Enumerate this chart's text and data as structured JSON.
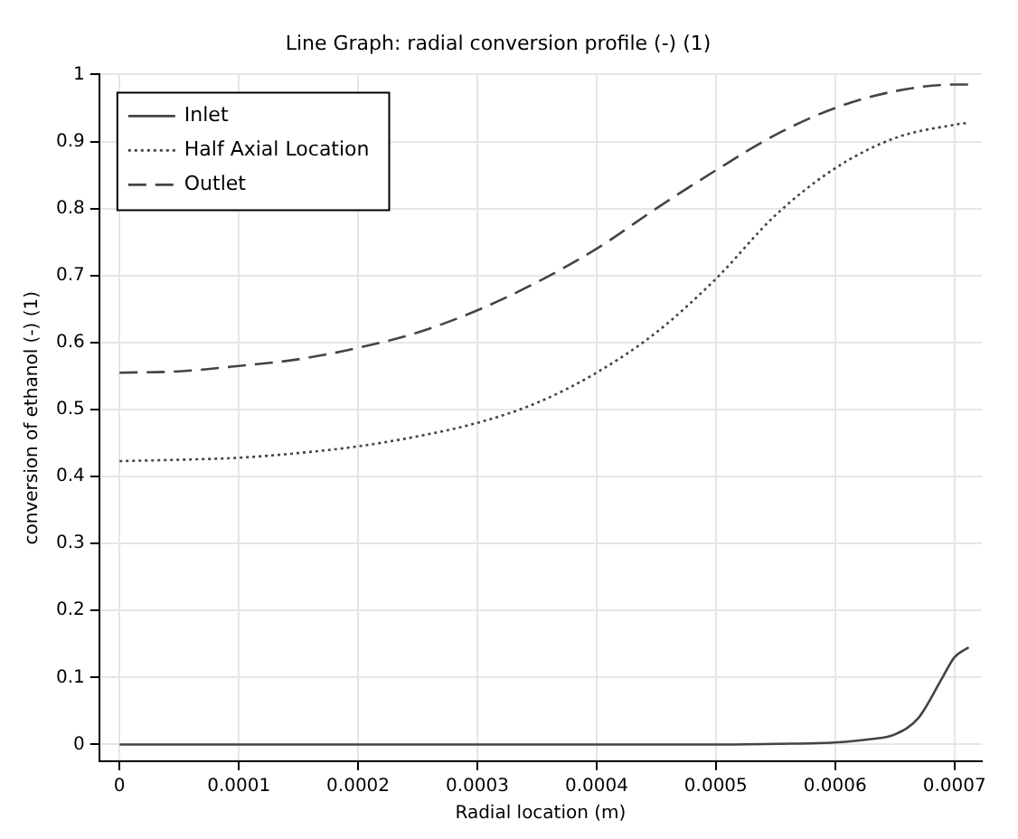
{
  "chart_data": {
    "type": "line",
    "title": "Line Graph: radial conversion profile (-) (1)",
    "xlabel": "Radial location (m)",
    "ylabel": "conversion of ethanol (-) (1)",
    "xlim": [
      -1.7e-05,
      0.000723
    ],
    "xticks": [
      0,
      0.0001,
      0.0002,
      0.0003,
      0.0004,
      0.0005,
      0.0006,
      0.0007
    ],
    "ylim": [
      -0.025,
      1
    ],
    "yticks": [
      0,
      0.1,
      0.2,
      0.3,
      0.4,
      0.5,
      0.6,
      0.7,
      0.8,
      0.9,
      1
    ],
    "grid": true,
    "legend": "top left",
    "marker": "none",
    "series": [
      {
        "name": "Inlet",
        "color": "#444444",
        "line_style": "solid",
        "x": [
          0,
          0.0001,
          0.0002,
          0.0003,
          0.0004,
          0.0005,
          0.00055,
          0.0006,
          0.00063,
          0.00065,
          0.00067,
          0.00069,
          0.0007,
          0.000712
        ],
        "values": [
          0,
          0,
          0,
          0,
          0,
          0,
          0.001,
          0.003,
          0.008,
          0.015,
          0.04,
          0.1,
          0.13,
          0.145
        ]
      },
      {
        "name": "Half Axial Location",
        "color": "#444444",
        "line_style": "dotted",
        "x": [
          0,
          5e-05,
          0.0001,
          0.00015,
          0.0002,
          0.00025,
          0.0003,
          0.00035,
          0.0004,
          0.00045,
          0.0005,
          0.00055,
          0.0006,
          0.00065,
          0.0007,
          0.000712
        ],
        "values": [
          0.423,
          0.425,
          0.428,
          0.435,
          0.445,
          0.46,
          0.48,
          0.51,
          0.555,
          0.615,
          0.695,
          0.79,
          0.86,
          0.905,
          0.925,
          0.928
        ]
      },
      {
        "name": "Outlet",
        "color": "#444444",
        "line_style": "dashed",
        "x": [
          0,
          5e-05,
          0.0001,
          0.00015,
          0.0002,
          0.00025,
          0.0003,
          0.00035,
          0.0004,
          0.00045,
          0.0005,
          0.00055,
          0.0006,
          0.00065,
          0.0007,
          0.000712
        ],
        "values": [
          0.555,
          0.557,
          0.565,
          0.575,
          0.592,
          0.615,
          0.648,
          0.69,
          0.74,
          0.8,
          0.857,
          0.91,
          0.95,
          0.975,
          0.985,
          0.985
        ]
      }
    ]
  }
}
